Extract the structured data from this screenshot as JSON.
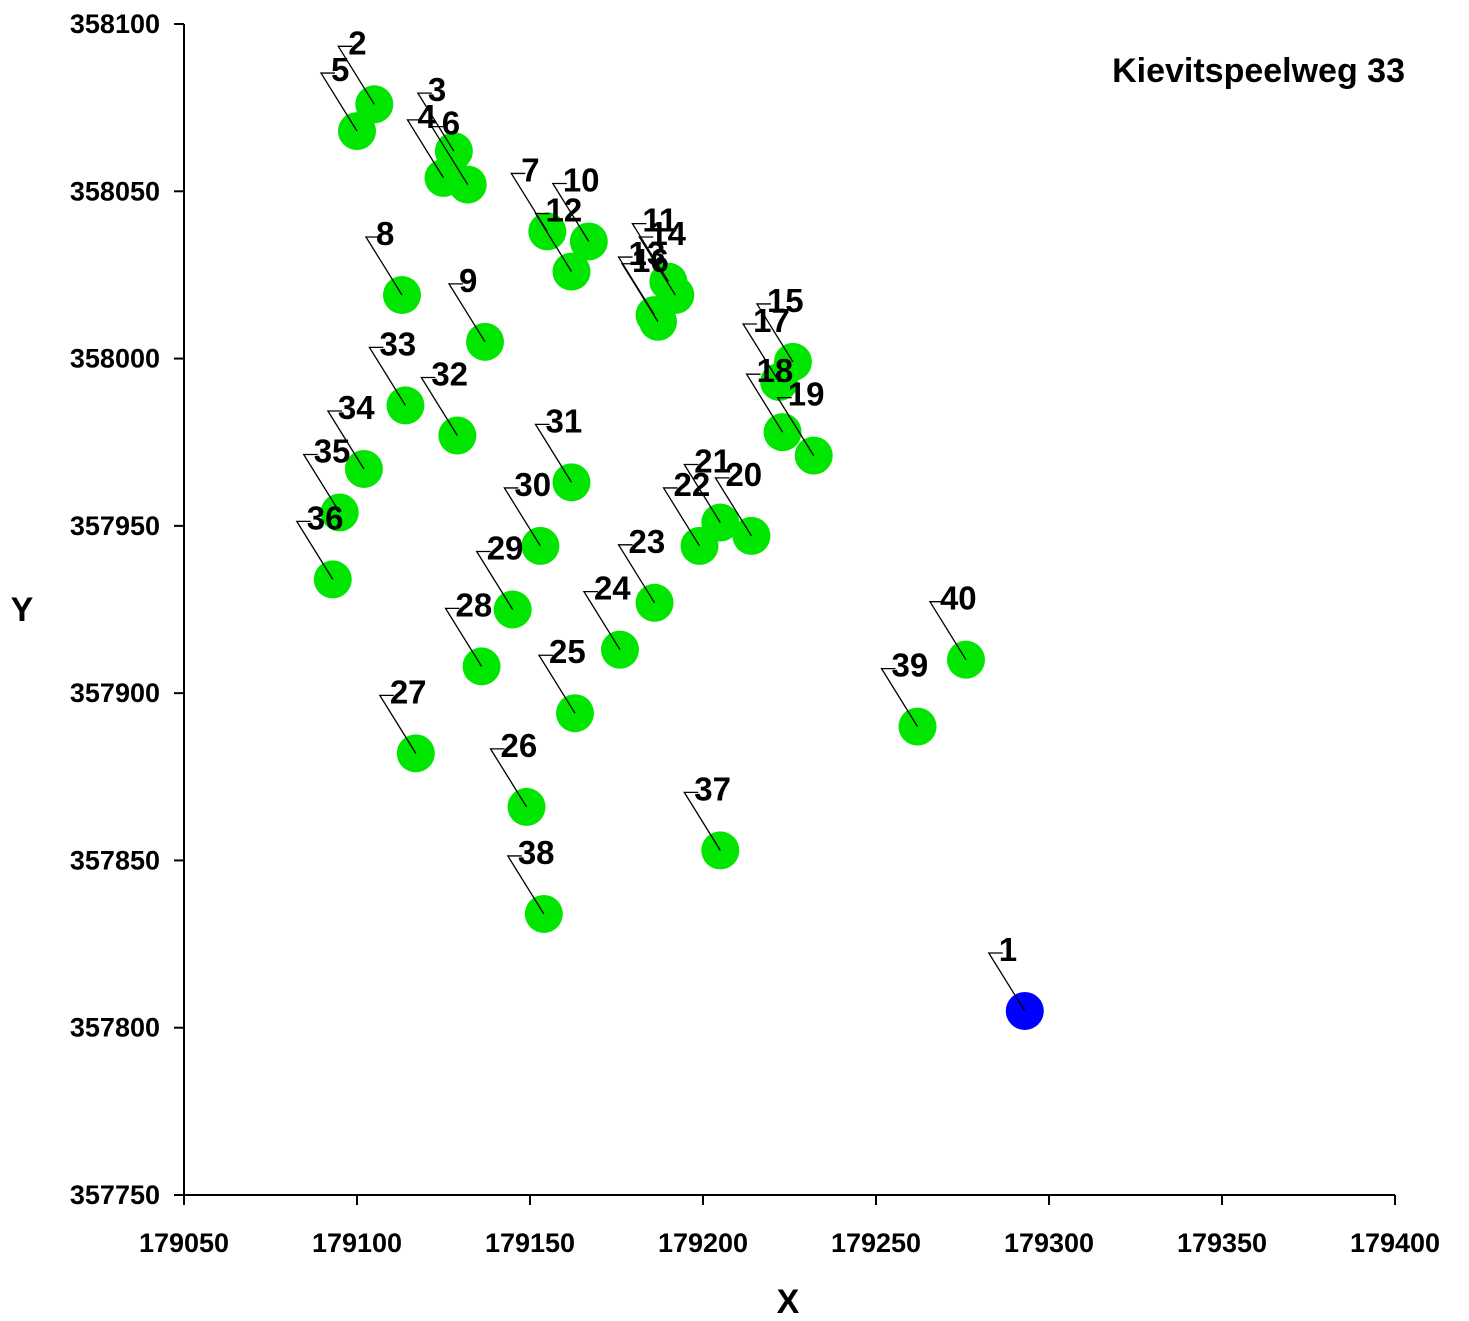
{
  "chart_data": {
    "type": "scatter",
    "title": "Kievitspeelweg 33",
    "xlabel": "X",
    "ylabel": "Y",
    "xlim": [
      179050,
      179400
    ],
    "ylim": [
      357750,
      358100
    ],
    "xticks": [
      "179050",
      "179100",
      "179150",
      "179200",
      "179250",
      "179300",
      "179350",
      "179400"
    ],
    "yticks": [
      "357750",
      "357800",
      "357850",
      "357900",
      "357950",
      "358000",
      "358050",
      "358100"
    ],
    "grid": false,
    "legend": "none",
    "colors": {
      "primary": "#0000ff",
      "others": "#00e600"
    },
    "points": [
      {
        "label": "1",
        "x": 179293,
        "y": 357805,
        "group": "primary"
      },
      {
        "label": "2",
        "x": 179105,
        "y": 358076,
        "group": "others"
      },
      {
        "label": "3",
        "x": 179128,
        "y": 358062,
        "group": "others"
      },
      {
        "label": "4",
        "x": 179125,
        "y": 358054,
        "group": "others"
      },
      {
        "label": "5",
        "x": 179100,
        "y": 358068,
        "group": "others"
      },
      {
        "label": "6",
        "x": 179132,
        "y": 358052,
        "group": "others"
      },
      {
        "label": "7",
        "x": 179155,
        "y": 358038,
        "group": "others"
      },
      {
        "label": "8",
        "x": 179113,
        "y": 358019,
        "group": "others"
      },
      {
        "label": "9",
        "x": 179137,
        "y": 358005,
        "group": "others"
      },
      {
        "label": "10",
        "x": 179167,
        "y": 358035,
        "group": "others"
      },
      {
        "label": "11",
        "x": 179190,
        "y": 358023,
        "group": "others"
      },
      {
        "label": "12",
        "x": 179162,
        "y": 358026,
        "group": "others"
      },
      {
        "label": "13",
        "x": 179186,
        "y": 358013,
        "group": "others"
      },
      {
        "label": "14",
        "x": 179192,
        "y": 358019,
        "group": "others"
      },
      {
        "label": "15",
        "x": 179226,
        "y": 357999,
        "group": "others"
      },
      {
        "label": "16",
        "x": 179187,
        "y": 358011,
        "group": "others"
      },
      {
        "label": "17",
        "x": 179222,
        "y": 357993,
        "group": "others"
      },
      {
        "label": "18",
        "x": 179223,
        "y": 357978,
        "group": "others"
      },
      {
        "label": "19",
        "x": 179232,
        "y": 357971,
        "group": "others"
      },
      {
        "label": "20",
        "x": 179214,
        "y": 357947,
        "group": "others"
      },
      {
        "label": "21",
        "x": 179205,
        "y": 357951,
        "group": "others"
      },
      {
        "label": "22",
        "x": 179199,
        "y": 357944,
        "group": "others"
      },
      {
        "label": "23",
        "x": 179186,
        "y": 357927,
        "group": "others"
      },
      {
        "label": "24",
        "x": 179176,
        "y": 357913,
        "group": "others"
      },
      {
        "label": "25",
        "x": 179163,
        "y": 357894,
        "group": "others"
      },
      {
        "label": "26",
        "x": 179149,
        "y": 357866,
        "group": "others"
      },
      {
        "label": "27",
        "x": 179117,
        "y": 357882,
        "group": "others"
      },
      {
        "label": "28",
        "x": 179136,
        "y": 357908,
        "group": "others"
      },
      {
        "label": "29",
        "x": 179145,
        "y": 357925,
        "group": "others"
      },
      {
        "label": "30",
        "x": 179153,
        "y": 357944,
        "group": "others"
      },
      {
        "label": "31",
        "x": 179162,
        "y": 357963,
        "group": "others"
      },
      {
        "label": "32",
        "x": 179129,
        "y": 357977,
        "group": "others"
      },
      {
        "label": "33",
        "x": 179114,
        "y": 357986,
        "group": "others"
      },
      {
        "label": "34",
        "x": 179102,
        "y": 357967,
        "group": "others"
      },
      {
        "label": "35",
        "x": 179095,
        "y": 357954,
        "group": "others"
      },
      {
        "label": "36",
        "x": 179093,
        "y": 357934,
        "group": "others"
      },
      {
        "label": "37",
        "x": 179205,
        "y": 357853,
        "group": "others"
      },
      {
        "label": "38",
        "x": 179154,
        "y": 357834,
        "group": "others"
      },
      {
        "label": "39",
        "x": 179262,
        "y": 357890,
        "group": "others"
      },
      {
        "label": "40",
        "x": 179276,
        "y": 357910,
        "group": "others"
      }
    ]
  }
}
